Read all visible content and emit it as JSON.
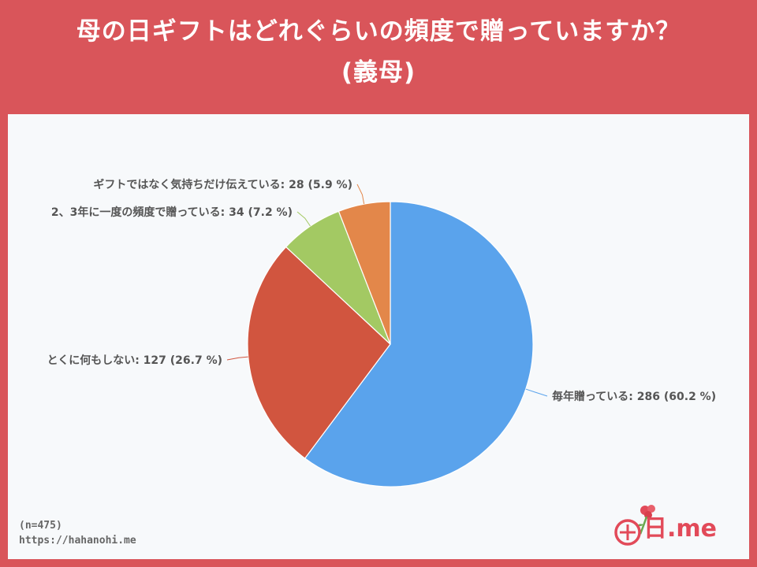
{
  "title": {
    "line1": "母の日ギフトはどれぐらいの頻度で贈っていますか？",
    "line2": "(義母)"
  },
  "chart_data": {
    "type": "pie",
    "slices": [
      {
        "label": "毎年贈っている",
        "value": 286,
        "percent": "60.2 %",
        "color": "#5aa3ec",
        "display": "毎年贈っている: 286 (60.2 %)"
      },
      {
        "label": "とくに何もしない",
        "value": 127,
        "percent": "26.7 %",
        "color": "#d1553f",
        "display": "とくに何もしない: 127 (26.7 %)"
      },
      {
        "label": "2、3年に一度の頻度で贈っている",
        "value": 34,
        "percent": "7.2 %",
        "color": "#a3c963",
        "display": "2、3年に一度の頻度で贈っている: 34 (7.2 %)"
      },
      {
        "label": "ギフトではなく気持ちだけ伝えている",
        "value": 28,
        "percent": "5.9 %",
        "color": "#e3874a",
        "display": "ギフトではなく気持ちだけ伝えている: 28 (5.9 %)"
      }
    ],
    "start_angle": "12 o'clock",
    "direction": "clockwise"
  },
  "footer": {
    "sample_size": "(n=475)",
    "url": "https://hahanohi.me"
  },
  "logo": {
    "text": "日.me",
    "brand_color": "#e24a59",
    "icon": "carnation-icon"
  }
}
